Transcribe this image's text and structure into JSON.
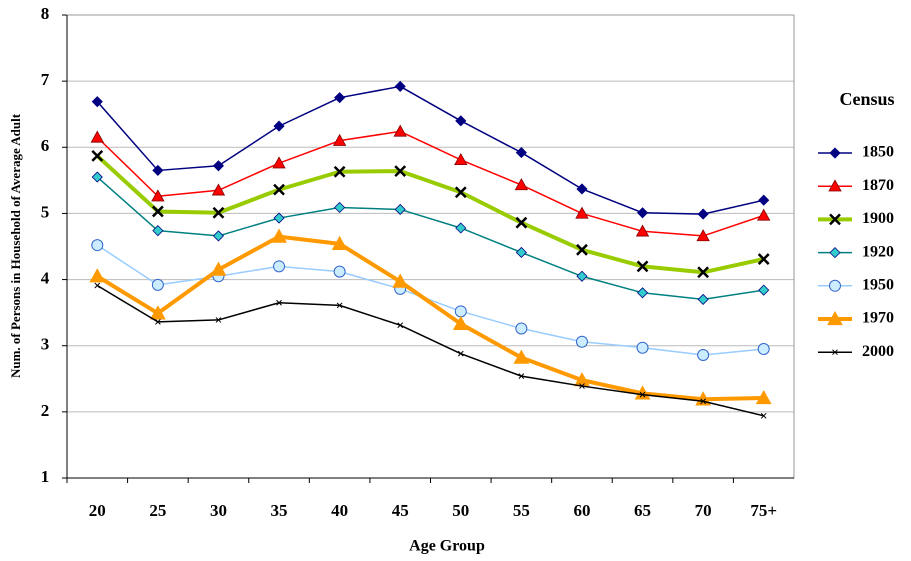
{
  "chart_data": {
    "type": "line",
    "x_label": "Age Group",
    "y_label": "Num. of Persons in Household of Average Adult",
    "legend_title": "Census",
    "legend": "right",
    "grid": true,
    "categories": [
      "20",
      "25",
      "30",
      "35",
      "40",
      "45",
      "50",
      "55",
      "60",
      "65",
      "70",
      "75+"
    ],
    "ylim": [
      1,
      8
    ],
    "yticks": [
      1,
      2,
      3,
      4,
      5,
      6,
      7,
      8
    ],
    "series": [
      {
        "name": "1850",
        "color": "#000080",
        "marker": "diamond",
        "marker_color": "#000080",
        "line_width": 1.5,
        "values": [
          6.69,
          5.65,
          5.72,
          6.32,
          6.75,
          6.92,
          6.4,
          5.92,
          5.37,
          5.01,
          4.99,
          5.2
        ]
      },
      {
        "name": "1870",
        "color": "#ff0000",
        "marker": "triangle",
        "marker_color": "#ff0000",
        "line_width": 1.5,
        "values": [
          6.15,
          5.26,
          5.35,
          5.76,
          6.1,
          6.24,
          5.81,
          5.43,
          5.0,
          4.73,
          4.66,
          4.97
        ]
      },
      {
        "name": "1900",
        "color": "#99cc00",
        "marker": "x",
        "marker_color": "#000000",
        "line_width": 4,
        "values": [
          5.87,
          5.03,
          5.01,
          5.36,
          5.63,
          5.64,
          5.32,
          4.86,
          4.45,
          4.2,
          4.11,
          4.31
        ]
      },
      {
        "name": "1920",
        "color": "#008080",
        "marker": "diamond",
        "marker_color": "#33cccc",
        "line_width": 1.5,
        "values": [
          5.55,
          4.74,
          4.66,
          4.93,
          5.09,
          5.06,
          4.78,
          4.41,
          4.05,
          3.8,
          3.7,
          3.84
        ]
      },
      {
        "name": "1950",
        "color": "#99ccff",
        "marker": "circle",
        "marker_color": "#ccecff",
        "line_width": 1.5,
        "values": [
          4.52,
          3.92,
          4.05,
          4.2,
          4.12,
          3.86,
          3.52,
          3.26,
          3.06,
          2.97,
          2.86,
          2.95
        ]
      },
      {
        "name": "1970",
        "color": "#ff9900",
        "marker": "triangle",
        "marker_color": "#ff9900",
        "line_width": 4,
        "values": [
          4.05,
          3.49,
          4.15,
          4.65,
          4.54,
          3.97,
          3.33,
          2.82,
          2.48,
          2.28,
          2.19,
          2.21
        ]
      },
      {
        "name": "2000",
        "color": "#000000",
        "marker": "x",
        "marker_color": "#000000",
        "line_width": 1.5,
        "values": [
          3.91,
          3.36,
          3.39,
          3.65,
          3.61,
          3.31,
          2.88,
          2.54,
          2.39,
          2.26,
          2.16,
          1.94
        ]
      }
    ]
  }
}
